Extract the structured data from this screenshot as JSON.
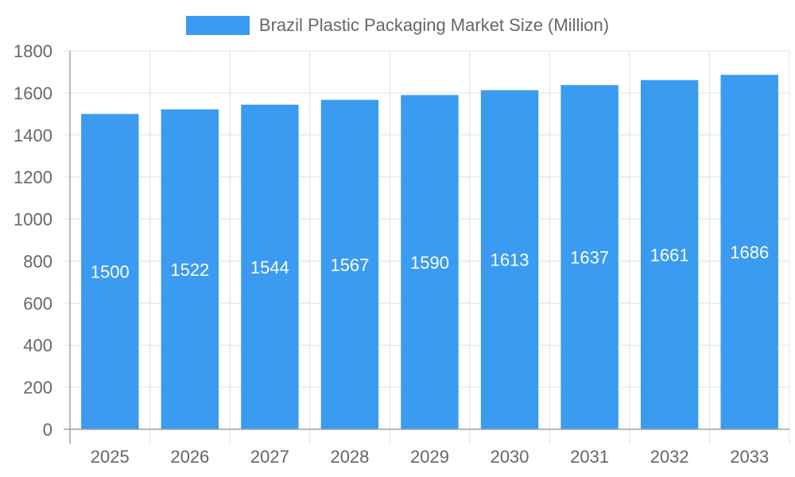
{
  "chart_data": {
    "type": "bar",
    "title": "",
    "categories": [
      "2025",
      "2026",
      "2027",
      "2028",
      "2029",
      "2030",
      "2031",
      "2032",
      "2033"
    ],
    "series": [
      {
        "name": "Brazil Plastic Packaging Market Size (Million)",
        "values": [
          1500,
          1522,
          1544,
          1567,
          1590,
          1613,
          1637,
          1661,
          1686
        ],
        "color": "#3a9bf0"
      }
    ],
    "xlabel": "",
    "ylabel": "",
    "ylim": [
      0,
      1800
    ],
    "yticks": [
      0,
      200,
      400,
      600,
      800,
      1000,
      1200,
      1400,
      1600,
      1800
    ],
    "grid": true,
    "legend_position": "top",
    "data_labels": true
  },
  "legend": {
    "label": "Brazil Plastic Packaging Market Size (Million)",
    "color": "#3a9bf0"
  },
  "colors": {
    "bar": "#3a9bf0",
    "grid": "#e0e0e0",
    "axis": "#a0a0a0",
    "text": "#666666",
    "bar_label": "#ffffff"
  }
}
